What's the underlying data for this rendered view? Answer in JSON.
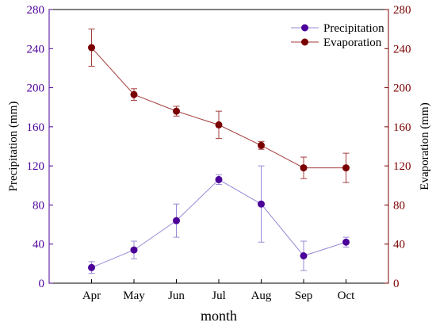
{
  "chart_data": {
    "type": "line",
    "categories": [
      "Apr",
      "May",
      "Jun",
      "Jul",
      "Aug",
      "Sep",
      "Oct"
    ],
    "xlabel": "month",
    "ylabel_left": "Precipitation (mm)",
    "ylabel_right": "Evaporation (mm)",
    "ylim_left": [
      0,
      280
    ],
    "ylim_right": [
      0,
      280
    ],
    "yticks": [
      0,
      40,
      80,
      120,
      160,
      200,
      240,
      280
    ],
    "grid": false,
    "legend_position": "top-right",
    "series": [
      {
        "name": "Precipitation",
        "axis": "left",
        "color": "#4b0099",
        "line_color": "#9a88d6",
        "values": [
          16,
          34,
          64,
          106,
          81,
          28,
          42
        ],
        "error": [
          6,
          9,
          17,
          5,
          39,
          15,
          5
        ]
      },
      {
        "name": "Evaporation",
        "axis": "right",
        "color": "#7a0000",
        "line_color": "#a33c3c",
        "values": [
          241,
          193,
          176,
          162,
          141,
          118,
          118
        ],
        "error": [
          19,
          6,
          5,
          14,
          4,
          11,
          15
        ]
      }
    ]
  }
}
